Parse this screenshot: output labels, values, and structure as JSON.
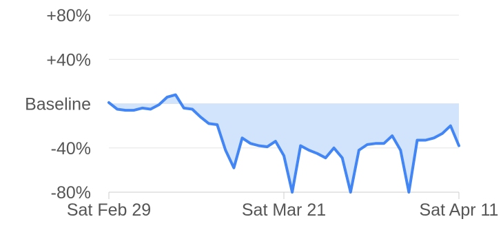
{
  "chart_data": {
    "type": "area",
    "title": "",
    "xlabel": "",
    "ylabel": "",
    "baseline_label": "Baseline",
    "ylim": [
      -80,
      80
    ],
    "y_ticks": [
      {
        "value": 80,
        "label": "+80%"
      },
      {
        "value": 40,
        "label": "+40%"
      },
      {
        "value": 0,
        "label": "Baseline"
      },
      {
        "value": -40,
        "label": "-40%"
      },
      {
        "value": -80,
        "label": "-80%"
      }
    ],
    "x_start": "2020-02-29",
    "x_end": "2020-04-11",
    "x_ticks": [
      {
        "date": "2020-02-29",
        "label": "Sat Feb 29"
      },
      {
        "date": "2020-03-21",
        "label": "Sat Mar 21"
      },
      {
        "date": "2020-04-11",
        "label": "Sat Apr 11"
      }
    ],
    "grid": true,
    "colors": {
      "line": "#4285f4",
      "fill": "#d2e3fc",
      "grid": "#e6e6e6",
      "axis": "#cccccc",
      "text": "#555555"
    },
    "series": [
      {
        "x": [
          "2020-02-29",
          "2020-03-01",
          "2020-03-02",
          "2020-03-03",
          "2020-03-04",
          "2020-03-05",
          "2020-03-06",
          "2020-03-07",
          "2020-03-08",
          "2020-03-09",
          "2020-03-10",
          "2020-03-11",
          "2020-03-12",
          "2020-03-13",
          "2020-03-14",
          "2020-03-15",
          "2020-03-16",
          "2020-03-17",
          "2020-03-18",
          "2020-03-19",
          "2020-03-20",
          "2020-03-21",
          "2020-03-22",
          "2020-03-23",
          "2020-03-24",
          "2020-03-25",
          "2020-03-26",
          "2020-03-27",
          "2020-03-28",
          "2020-03-29",
          "2020-03-30",
          "2020-03-31",
          "2020-04-01",
          "2020-04-02",
          "2020-04-03",
          "2020-04-04",
          "2020-04-05",
          "2020-04-06",
          "2020-04-07",
          "2020-04-08",
          "2020-04-09",
          "2020-04-10",
          "2020-04-11"
        ],
        "values": [
          1,
          -5,
          -6,
          -6,
          -4,
          -5,
          -1,
          6,
          8,
          -4,
          -5,
          -12,
          -18,
          -19,
          -42,
          -58,
          -31,
          -36,
          -38,
          -39,
          -34,
          -47,
          -93,
          -38,
          -42,
          -45,
          -49,
          -40,
          -49,
          -93,
          -42,
          -37,
          -36,
          -36,
          -29,
          -42,
          -93,
          -33,
          -33,
          -31,
          -27,
          -20,
          -38
        ]
      }
    ]
  }
}
